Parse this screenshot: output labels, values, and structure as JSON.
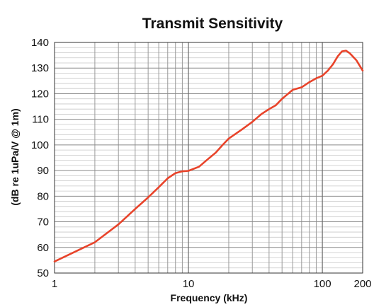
{
  "chart_data": {
    "type": "line",
    "title": "Transmit Sensitivity",
    "xlabel": "Frequency (kHz)",
    "ylabel": "(dB re 1uPa/V @ 1m)",
    "x_scale": "log",
    "xlim": [
      1,
      200
    ],
    "ylim": [
      50,
      140
    ],
    "x_ticks": [
      1,
      10,
      100,
      200
    ],
    "x_tick_labels": [
      "1",
      "10",
      "100",
      "200"
    ],
    "y_ticks": [
      50,
      60,
      70,
      80,
      90,
      100,
      110,
      120,
      130,
      140
    ],
    "y_tick_labels": [
      "50",
      "60",
      "70",
      "80",
      "90",
      "100",
      "110",
      "120",
      "130",
      "140"
    ],
    "grid": true,
    "legend": "none",
    "line_color": "#e8432a",
    "series": [
      {
        "x": [
          1,
          2,
          3,
          4,
          5,
          6,
          7,
          8,
          9,
          10,
          12,
          14,
          16,
          18,
          20,
          25,
          30,
          35,
          40,
          45,
          50,
          60,
          70,
          80,
          90,
          100,
          110,
          120,
          130,
          140,
          150,
          160,
          180,
          200
        ],
        "values": [
          54.5,
          62,
          69,
          75,
          79.5,
          83.5,
          87,
          89,
          89.7,
          89.9,
          91.5,
          94.5,
          97,
          100,
          102.5,
          106,
          109,
          112,
          114,
          115.5,
          118,
          121.5,
          122.5,
          124.5,
          126,
          127,
          129,
          131.5,
          134.5,
          136.5,
          136.8,
          135.8,
          133,
          129
        ]
      }
    ]
  }
}
